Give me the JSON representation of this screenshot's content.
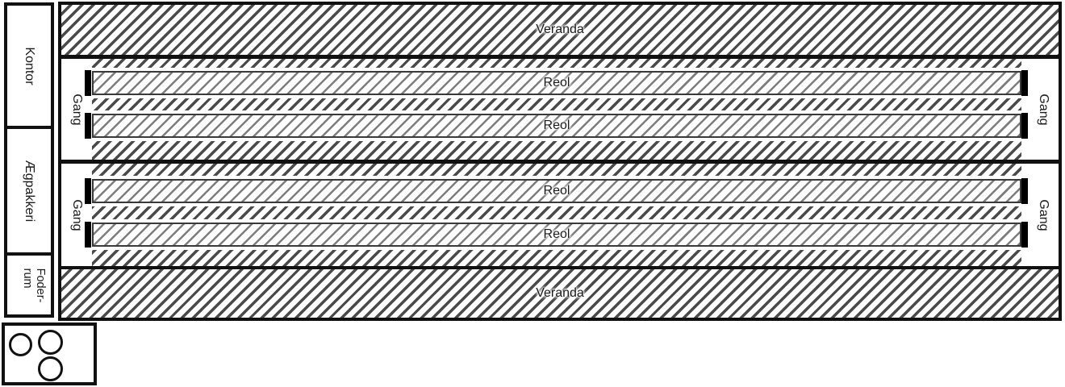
{
  "left_rooms": {
    "kontor": "Kontor",
    "aegpakkeri": "Ægpakkeri",
    "foderrum_line1": "Foder-",
    "foderrum_line2": "rum"
  },
  "veranda": {
    "top": "Veranda",
    "bottom": "Veranda"
  },
  "sections": [
    {
      "gang_left": "Gang",
      "gang_right": "Gang",
      "reol_top": "Reol",
      "reol_bottom": "Reol"
    },
    {
      "gang_left": "Gang",
      "gang_right": "Gang",
      "reol_top": "Reol",
      "reol_bottom": "Reol"
    }
  ],
  "circles": {
    "count": 3
  },
  "colors": {
    "outline": "#111111",
    "hatch_dark": "#4a4a4a",
    "hatch_light": "#7d7d7d",
    "shelf_end_marker": "#000000",
    "background": "#ffffff",
    "text": "#1a1a1a"
  }
}
